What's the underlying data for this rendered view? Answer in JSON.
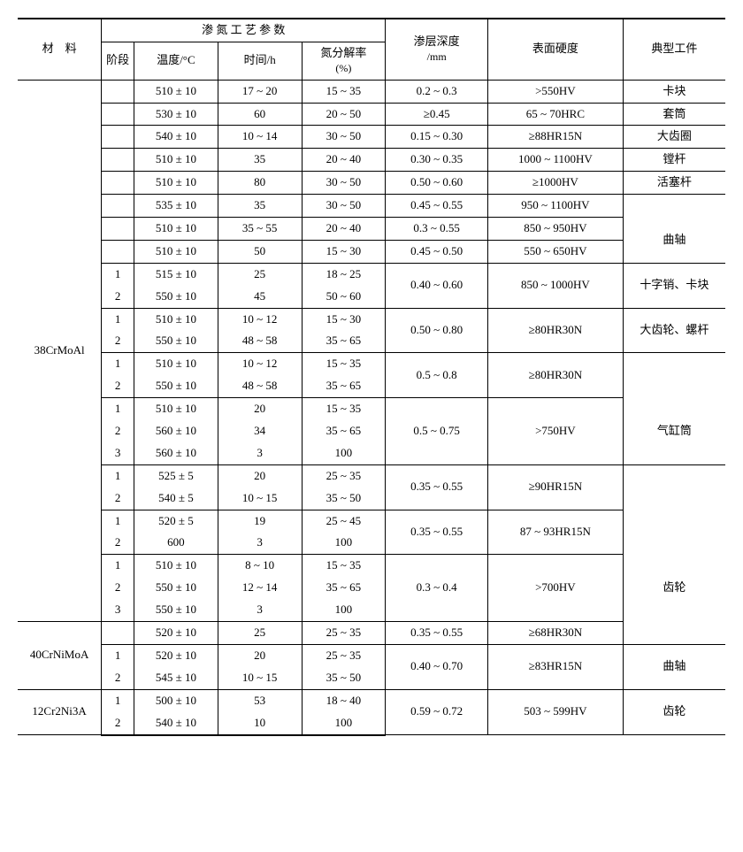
{
  "header": {
    "material": "材　料",
    "group": "渗 氮 工 艺 参 数",
    "stage": "阶段",
    "temp": "温度/°C",
    "time": "时间/h",
    "diss": "氮分解率",
    "diss_unit": "(%)",
    "depth": "渗层深度",
    "depth_unit": "/mm",
    "hardness": "表面硬度",
    "part": "典型工件"
  },
  "mat": {
    "m1": "38CrMoAl",
    "m2": "40CrNiMoA",
    "m3": "12Cr2Ni3A"
  },
  "r": [
    {
      "stg": "",
      "t": "510 ± 10",
      "h": "17 ~ 20",
      "d": "15 ~ 35",
      "dep": "0.2 ~ 0.3",
      "hard": ">550HV",
      "p": "卡块"
    },
    {
      "stg": "",
      "t": "530 ± 10",
      "h": "60",
      "d": "20 ~ 50",
      "dep": "≥0.45",
      "hard": "65 ~ 70HRC",
      "p": "套筒"
    },
    {
      "stg": "",
      "t": "540 ± 10",
      "h": "10 ~ 14",
      "d": "30 ~ 50",
      "dep": "0.15 ~ 0.30",
      "hard": "≥88HR15N",
      "p": "大齿圈"
    },
    {
      "stg": "",
      "t": "510 ± 10",
      "h": "35",
      "d": "20 ~ 40",
      "dep": "0.30 ~ 0.35",
      "hard": "1000 ~ 1100HV",
      "p": "镗杆"
    },
    {
      "stg": "",
      "t": "510 ± 10",
      "h": "80",
      "d": "30 ~ 50",
      "dep": "0.50 ~ 0.60",
      "hard": "≥1000HV",
      "p": "活塞杆"
    },
    {
      "stg": "",
      "t": "535 ± 10",
      "h": "35",
      "d": "30 ~ 50",
      "dep": "0.45 ~ 0.55",
      "hard": "950 ~ 1100HV",
      "p": ""
    },
    {
      "stg": "",
      "t": "510 ± 10",
      "h": "35 ~ 55",
      "d": "20 ~ 40",
      "dep": "0.3 ~ 0.55",
      "hard": "850 ~ 950HV",
      "p": ""
    },
    {
      "stg": "",
      "t": "510 ± 10",
      "h": "50",
      "d": "15 ~ 30",
      "dep": "0.45 ~ 0.50",
      "hard": "550 ~ 650HV",
      "p": ""
    },
    {
      "stg": "1",
      "t": "515 ± 10",
      "h": "25",
      "d": "18 ~ 25",
      "dep": "",
      "hard": "",
      "p": ""
    },
    {
      "stg": "2",
      "t": "550 ± 10",
      "h": "45",
      "d": "50 ~ 60",
      "dep": "",
      "hard": "",
      "p": ""
    },
    {
      "stg": "1",
      "t": "510 ± 10",
      "h": "10 ~ 12",
      "d": "15 ~ 30",
      "dep": "",
      "hard": "",
      "p": ""
    },
    {
      "stg": "2",
      "t": "550 ± 10",
      "h": "48 ~ 58",
      "d": "35 ~ 65",
      "dep": "",
      "hard": "",
      "p": ""
    },
    {
      "stg": "1",
      "t": "510 ± 10",
      "h": "10 ~ 12",
      "d": "15 ~ 35",
      "dep": "",
      "hard": "",
      "p": ""
    },
    {
      "stg": "2",
      "t": "550 ± 10",
      "h": "48 ~ 58",
      "d": "35 ~ 65",
      "dep": "",
      "hard": "",
      "p": ""
    },
    {
      "stg": "1",
      "t": "510 ± 10",
      "h": "20",
      "d": "15 ~ 35",
      "dep": "",
      "hard": "",
      "p": ""
    },
    {
      "stg": "2",
      "t": "560 ± 10",
      "h": "34",
      "d": "35 ~ 65",
      "dep": "",
      "hard": "",
      "p": ""
    },
    {
      "stg": "3",
      "t": "560 ± 10",
      "h": "3",
      "d": "100",
      "dep": "",
      "hard": "",
      "p": ""
    },
    {
      "stg": "1",
      "t": "525 ± 5",
      "h": "20",
      "d": "25 ~ 35",
      "dep": "",
      "hard": "",
      "p": ""
    },
    {
      "stg": "2",
      "t": "540 ± 5",
      "h": "10 ~ 15",
      "d": "35 ~ 50",
      "dep": "",
      "hard": "",
      "p": ""
    },
    {
      "stg": "1",
      "t": "520 ± 5",
      "h": "19",
      "d": "25 ~ 45",
      "dep": "",
      "hard": "",
      "p": ""
    },
    {
      "stg": "2",
      "t": "600",
      "h": "3",
      "d": "100",
      "dep": "",
      "hard": "",
      "p": ""
    },
    {
      "stg": "1",
      "t": "510 ± 10",
      "h": "8 ~ 10",
      "d": "15 ~ 35",
      "dep": "",
      "hard": "",
      "p": ""
    },
    {
      "stg": "2",
      "t": "550 ± 10",
      "h": "12 ~ 14",
      "d": "35 ~ 65",
      "dep": "",
      "hard": "",
      "p": ""
    },
    {
      "stg": "3",
      "t": "550 ± 10",
      "h": "3",
      "d": "100",
      "dep": "",
      "hard": "",
      "p": ""
    },
    {
      "stg": "",
      "t": "520 ± 10",
      "h": "25",
      "d": "25 ~ 35",
      "dep": "0.35 ~ 0.55",
      "hard": "≥68HR30N",
      "p": ""
    },
    {
      "stg": "1",
      "t": "520 ± 10",
      "h": "20",
      "d": "25 ~ 35",
      "dep": "",
      "hard": "",
      "p": ""
    },
    {
      "stg": "2",
      "t": "545 ± 10",
      "h": "10 ~ 15",
      "d": "35 ~ 50",
      "dep": "",
      "hard": "",
      "p": ""
    },
    {
      "stg": "1",
      "t": "500 ± 10",
      "h": "53",
      "d": "18 ~ 40",
      "dep": "",
      "hard": "",
      "p": ""
    },
    {
      "stg": "2",
      "t": "540 ± 10",
      "h": "10",
      "d": "100",
      "dep": "",
      "hard": "",
      "p": ""
    }
  ],
  "merge": {
    "p_qz": "曲轴",
    "p_szk": "十字销、卡块",
    "p_dcl": "大齿轮、螺杆",
    "p_qgt": "气缸筒",
    "p_cl": "齿轮",
    "p_qz2": "曲轴",
    "p_cl2": "齿轮",
    "dep_g1": "0.40 ~ 0.60",
    "hard_g1": "850 ~ 1000HV",
    "dep_g2": "0.50 ~ 0.80",
    "hard_g2": "≥80HR30N",
    "dep_g3": "0.5 ~ 0.8",
    "hard_g3": "≥80HR30N",
    "dep_g4": "0.5 ~ 0.75",
    "hard_g4": ">750HV",
    "dep_g5": "0.35 ~ 0.55",
    "hard_g5": "≥90HR15N",
    "dep_g6": "0.35 ~ 0.55",
    "hard_g6": "87 ~ 93HR15N",
    "dep_g7": "0.3 ~ 0.4",
    "hard_g7": ">700HV",
    "dep_m2b": "0.40 ~ 0.70",
    "hard_m2b": "≥83HR15N",
    "dep_m3": "0.59 ~ 0.72",
    "hard_m3": "503 ~ 599HV"
  },
  "style": {
    "font_size": 13,
    "border_color": "#000000",
    "bg": "#ffffff"
  }
}
